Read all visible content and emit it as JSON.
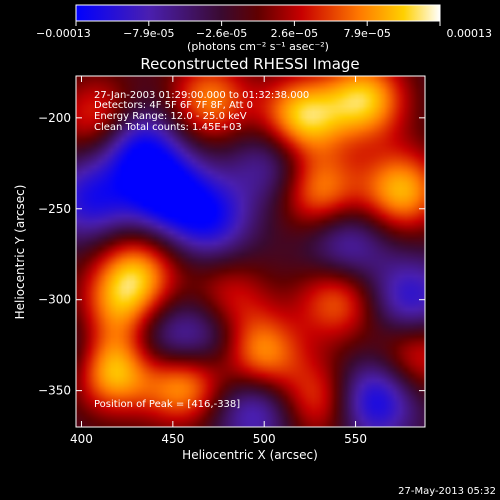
{
  "colorbar": {
    "min": -0.00013,
    "max": 0.00013,
    "ticks": [
      "-0.00013",
      "-7.9e-05",
      "-2.6e-05",
      "2.6e-05",
      "7.9e-05",
      "0.00013"
    ],
    "unit_label": "(photons cm⁻² s⁻¹ asec⁻²)"
  },
  "chart_data": {
    "type": "heatmap",
    "title": "Reconstructed RHESSI Image",
    "xlabel": "Heliocentric X (arcsec)",
    "ylabel": "Heliocentric Y (arcsec)",
    "xlim": [
      397,
      588
    ],
    "ylim": [
      -370,
      -177
    ],
    "xticks": [
      400,
      450,
      500,
      550
    ],
    "yticks": [
      -350,
      -300,
      -250,
      -200
    ],
    "colormap": "blue-purple-red-orange-yellow-white",
    "annotations": [
      "27-Jan-2003 01:29:00.000 to 01:32:38.000",
      "Detectors: 4F 5F 6F 7F 8F, Att 0",
      "Energy Range: 12.0 - 25.0 keV",
      "Clean    Total counts: 1.45E+03"
    ],
    "peak_label": "Position of Peak = [416,-338]",
    "peak": [
      416,
      -338
    ],
    "sources": [
      {
        "x": 416,
        "y": -338,
        "v": 1.0
      },
      {
        "x": 455,
        "y": -345,
        "v": 0.85
      },
      {
        "x": 498,
        "y": -330,
        "v": 0.75
      },
      {
        "x": 520,
        "y": -200,
        "v": 0.9
      },
      {
        "x": 555,
        "y": -190,
        "v": 0.85
      },
      {
        "x": 575,
        "y": -240,
        "v": 0.8
      },
      {
        "x": 530,
        "y": -240,
        "v": 0.7
      },
      {
        "x": 470,
        "y": -190,
        "v": 0.65
      },
      {
        "x": 430,
        "y": -285,
        "v": 0.7
      },
      {
        "x": 420,
        "y": -305,
        "v": 0.55
      },
      {
        "x": 540,
        "y": -300,
        "v": 0.6
      },
      {
        "x": 530,
        "y": -355,
        "v": 0.55
      },
      {
        "x": 410,
        "y": -200,
        "v": 0.55
      },
      {
        "x": 480,
        "y": -300,
        "v": 0.45
      },
      {
        "x": 583,
        "y": -330,
        "v": 0.5
      },
      {
        "x": 445,
        "y": -240,
        "v": -0.8
      },
      {
        "x": 470,
        "y": -255,
        "v": -0.65
      },
      {
        "x": 430,
        "y": -215,
        "v": -0.7
      },
      {
        "x": 405,
        "y": -245,
        "v": -0.6
      },
      {
        "x": 560,
        "y": -355,
        "v": -0.75
      },
      {
        "x": 580,
        "y": -300,
        "v": -0.6
      },
      {
        "x": 445,
        "y": -325,
        "v": -0.5
      },
      {
        "x": 495,
        "y": -360,
        "v": -0.55
      },
      {
        "x": 505,
        "y": -225,
        "v": -0.45
      },
      {
        "x": 400,
        "y": -330,
        "v": -0.4
      },
      {
        "x": 470,
        "y": -320,
        "v": -0.45
      },
      {
        "x": 545,
        "y": -270,
        "v": -0.5
      }
    ]
  },
  "footer": {
    "timestamp": "27-May-2013 05:32"
  }
}
